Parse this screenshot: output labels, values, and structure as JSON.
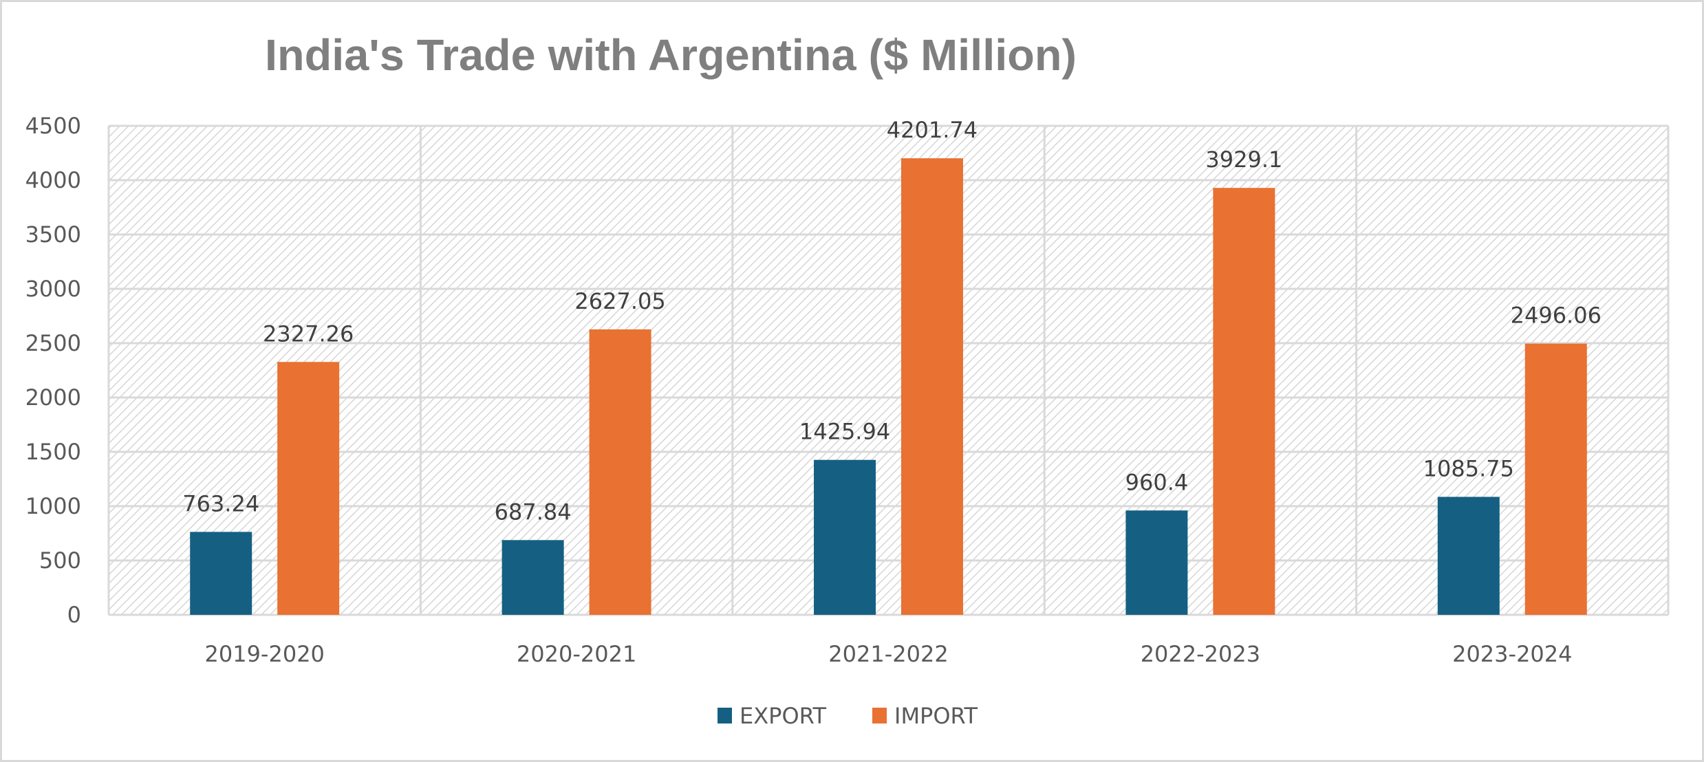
{
  "chart_data": {
    "type": "bar",
    "title": "India's Trade with Argentina ($ Million)",
    "xlabel": "",
    "ylabel": "",
    "categories": [
      "2019-2020",
      "2020-2021",
      "2021-2022",
      "2022-2023",
      "2023-2024"
    ],
    "series": [
      {
        "name": "EXPORT",
        "color": "#156082",
        "values": [
          763.24,
          687.84,
          1425.94,
          960.4,
          1085.75
        ],
        "labels": [
          "763.24",
          "687.84",
          "1425.94",
          "960.4",
          "1085.75"
        ]
      },
      {
        "name": "IMPORT",
        "color": "#E97132",
        "values": [
          2327.26,
          2627.05,
          4201.74,
          3929.1,
          2496.06
        ],
        "labels": [
          "2327.26",
          "2627.05",
          "4201.74",
          "3929.1",
          "2496.06"
        ]
      }
    ],
    "ylim": [
      0,
      4500
    ],
    "yticks": [
      "0",
      "500",
      "1000",
      "1500",
      "2000",
      "2500",
      "3000",
      "3500",
      "4000",
      "4500"
    ],
    "grid": true,
    "legend_position": "bottom"
  }
}
